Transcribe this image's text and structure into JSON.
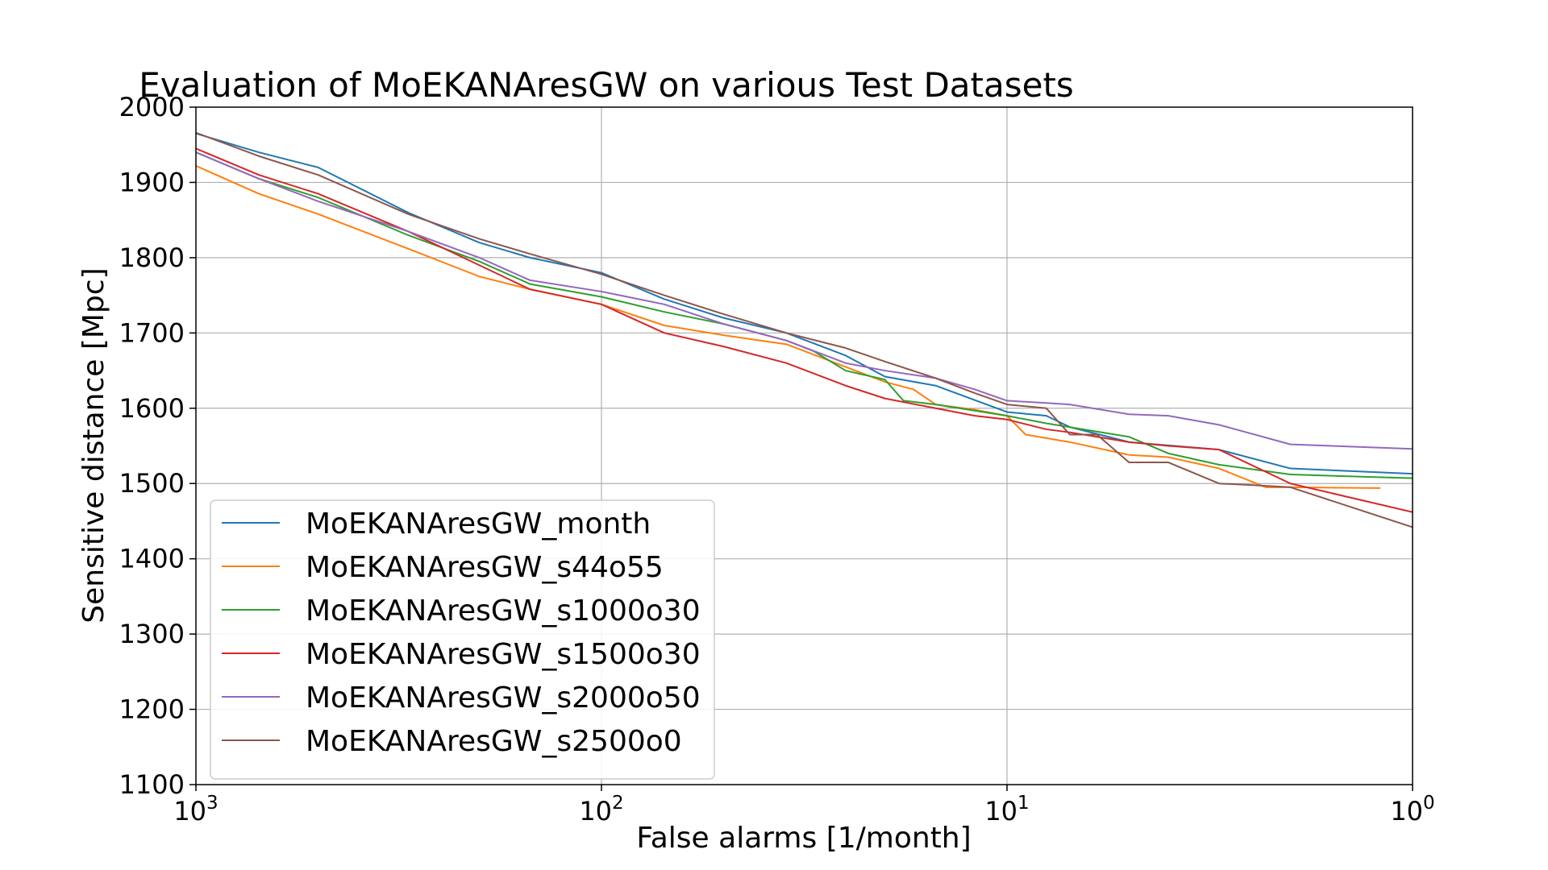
{
  "chart_data": {
    "type": "line",
    "title": "Evaluation of MoEKANAresGW on various Test Datasets",
    "xlabel": "False alarms [1/month]",
    "ylabel": "Sensitive distance [Mpc]",
    "x_scale": "log",
    "x_reversed": true,
    "xlim": [
      1000,
      1
    ],
    "ylim": [
      1100,
      2000
    ],
    "x_ticks": [
      {
        "value": 1000,
        "base": "10",
        "exp": "3"
      },
      {
        "value": 100,
        "base": "10",
        "exp": "2"
      },
      {
        "value": 10,
        "base": "10",
        "exp": "1"
      },
      {
        "value": 1,
        "base": "10",
        "exp": "0"
      }
    ],
    "y_ticks": [
      1100,
      1200,
      1300,
      1400,
      1500,
      1600,
      1700,
      1800,
      1900,
      2000
    ],
    "y_tick_labels": [
      "1100",
      "1200",
      "1300",
      "1400",
      "1500",
      "1600",
      "1700",
      "1800",
      "1900",
      "2000"
    ],
    "grid": true,
    "legend_position": "lower-left",
    "series": [
      {
        "name": "MoEKANAresGW_month",
        "color": "#1f77b4",
        "x": [
          1000,
          700,
          500,
          300,
          200,
          150,
          100,
          70,
          50,
          35,
          25,
          20,
          15,
          10,
          8,
          7,
          5,
          3,
          2,
          1
        ],
        "y": [
          1965,
          1940,
          1920,
          1860,
          1820,
          1800,
          1780,
          1745,
          1720,
          1700,
          1670,
          1642,
          1630,
          1595,
          1590,
          1575,
          1555,
          1545,
          1520,
          1513
        ]
      },
      {
        "name": "MoEKANAresGW_s44o55",
        "color": "#ff7f0e",
        "x": [
          1000,
          700,
          500,
          300,
          200,
          150,
          100,
          70,
          50,
          35,
          25,
          20,
          17,
          15,
          12,
          10,
          9,
          7,
          5,
          4,
          3,
          2.3,
          2,
          1.2
        ],
        "y": [
          1922,
          1885,
          1858,
          1812,
          1775,
          1758,
          1738,
          1710,
          1697,
          1685,
          1655,
          1635,
          1625,
          1605,
          1598,
          1590,
          1565,
          1555,
          1538,
          1535,
          1520,
          1495,
          1495,
          1494
        ]
      },
      {
        "name": "MoEKANAresGW_s1000o30",
        "color": "#2ca02c",
        "x": [
          1000,
          700,
          500,
          300,
          200,
          150,
          100,
          70,
          50,
          35,
          30,
          25,
          20,
          18,
          15,
          10,
          8,
          5,
          4,
          3,
          2,
          1
        ],
        "y": [
          1940,
          1905,
          1880,
          1830,
          1795,
          1765,
          1748,
          1728,
          1712,
          1690,
          1676,
          1650,
          1638,
          1610,
          1605,
          1590,
          1580,
          1562,
          1540,
          1525,
          1512,
          1507
        ]
      },
      {
        "name": "MoEKANAresGW_s1500o30",
        "color": "#d62728",
        "x": [
          1000,
          700,
          500,
          300,
          200,
          150,
          100,
          70,
          50,
          35,
          25,
          20,
          15,
          12,
          10,
          8,
          7,
          5,
          4,
          3,
          2,
          1
        ],
        "y": [
          1945,
          1910,
          1885,
          1835,
          1790,
          1758,
          1738,
          1700,
          1682,
          1660,
          1630,
          1613,
          1600,
          1590,
          1585,
          1572,
          1568,
          1555,
          1550,
          1545,
          1500,
          1462
        ]
      },
      {
        "name": "MoEKANAresGW_s2000o50",
        "color": "#9467bd",
        "x": [
          1000,
          700,
          500,
          300,
          200,
          150,
          100,
          70,
          50,
          35,
          25,
          20,
          15,
          12,
          10,
          8,
          7,
          5,
          4,
          3,
          2,
          1
        ],
        "y": [
          1940,
          1905,
          1875,
          1835,
          1800,
          1770,
          1755,
          1738,
          1712,
          1690,
          1660,
          1650,
          1640,
          1625,
          1610,
          1607,
          1605,
          1592,
          1590,
          1578,
          1552,
          1546
        ]
      },
      {
        "name": "MoEKANAresGW_s2500o0",
        "color": "#8c564b",
        "x": [
          1000,
          700,
          500,
          300,
          200,
          150,
          100,
          70,
          50,
          35,
          25,
          20,
          15,
          12,
          10,
          8,
          7,
          6,
          5,
          4,
          3,
          2.5,
          2,
          1
        ],
        "y": [
          1966,
          1935,
          1910,
          1858,
          1825,
          1805,
          1778,
          1750,
          1725,
          1700,
          1680,
          1662,
          1640,
          1620,
          1605,
          1600,
          1565,
          1565,
          1528,
          1528,
          1500,
          1498,
          1495,
          1442
        ]
      }
    ]
  }
}
